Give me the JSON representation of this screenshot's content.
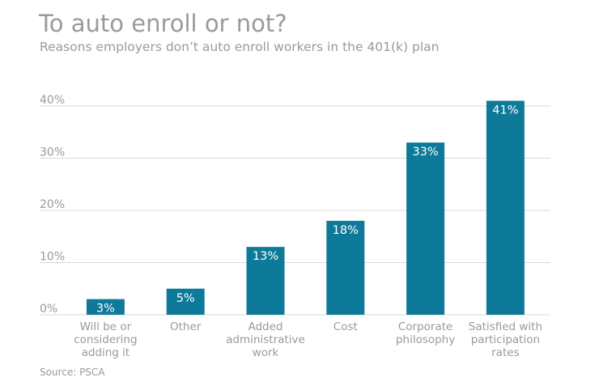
{
  "chart_data": {
    "type": "bar",
    "title": "To auto enroll or not?",
    "subtitle": "Reasons employers don’t auto enroll workers in the 401(k) plan",
    "source": "Source: PSCA",
    "categories": [
      [
        "Will be or",
        "considering",
        "adding it"
      ],
      [
        "Other"
      ],
      [
        "Added",
        "administrative",
        "work"
      ],
      [
        "Cost"
      ],
      [
        "Corporate",
        "philosophy"
      ],
      [
        "Satisfied with",
        "participation",
        "rates"
      ]
    ],
    "values": [
      3,
      5,
      13,
      18,
      33,
      41
    ],
    "data_labels": [
      "3%",
      "5%",
      "13%",
      "18%",
      "33%",
      "41%"
    ],
    "yticks": [
      0,
      10,
      20,
      30,
      40
    ],
    "ytick_labels": [
      "0%",
      "10%",
      "20%",
      "30%",
      "40%"
    ],
    "ylim": [
      0,
      41
    ],
    "grid": true,
    "xlabel": "",
    "ylabel": "",
    "colors": {
      "bar": "#0e7a99",
      "grid": "#d9d9d9",
      "text": "#9a9a9a",
      "label": "#ffffff"
    }
  }
}
